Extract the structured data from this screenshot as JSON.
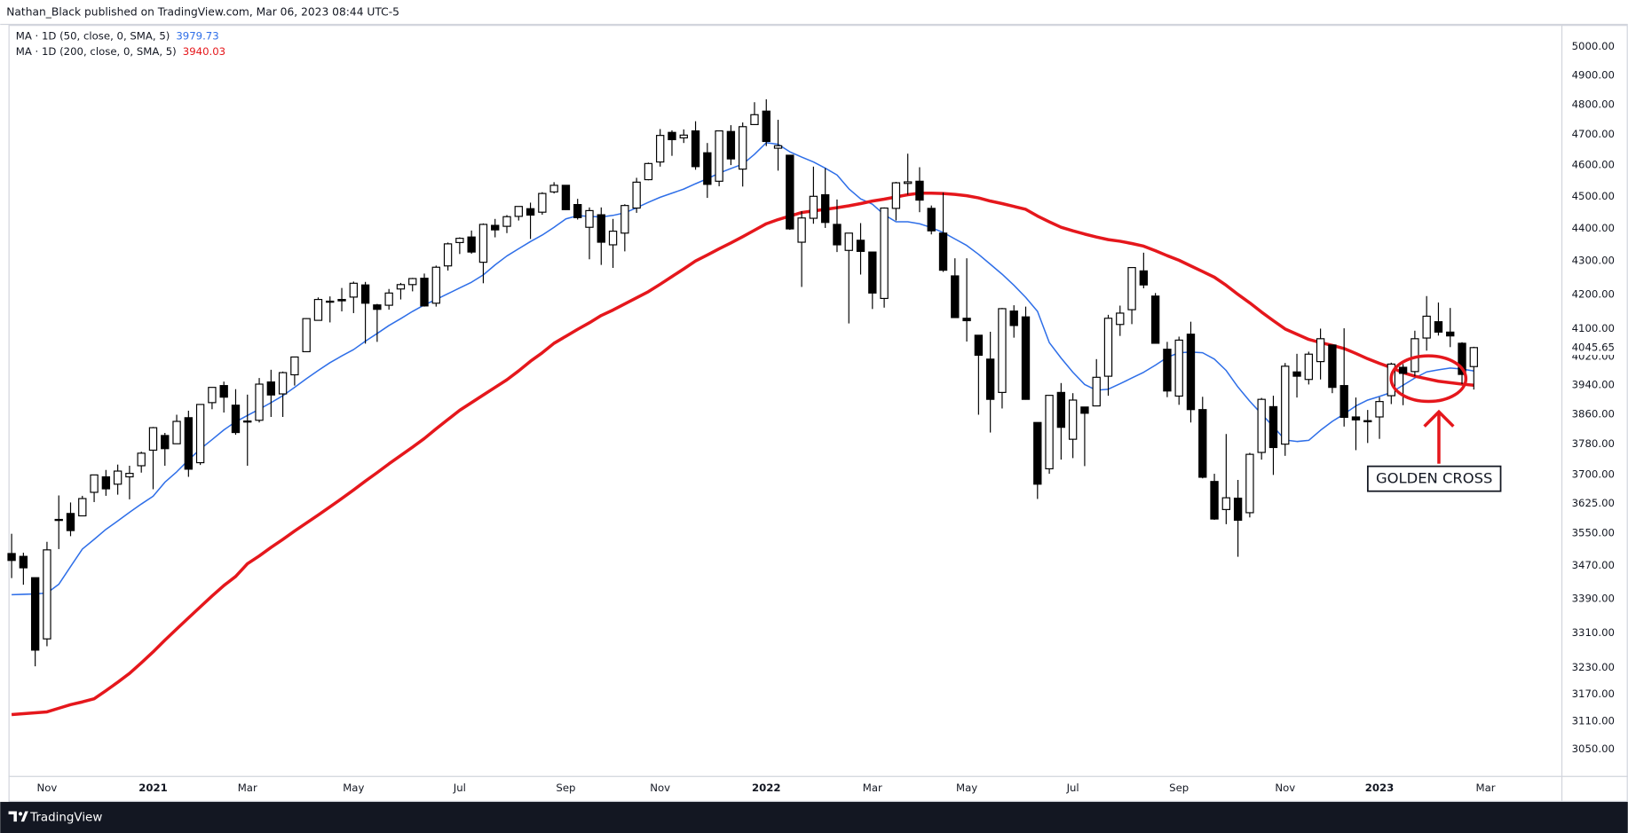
{
  "header": "Nathan_Black published on TradingView.com, Mar 06, 2023 08:44 UTC-5",
  "footer": "TradingView",
  "chart_data": {
    "type": "candlestick",
    "log_scale": true,
    "grid": false,
    "up_color": "#ffffff",
    "down_color": "#000000",
    "annotation": "GOLDEN CROSS",
    "ylim": [
      2993,
      5062
    ],
    "yticks": [
      {
        "value": 3050,
        "label": "3050.00"
      },
      {
        "value": 3110,
        "label": "3110.00"
      },
      {
        "value": 3170,
        "label": "3170.00"
      },
      {
        "value": 3230,
        "label": "3230.00"
      },
      {
        "value": 3310,
        "label": "3310.00"
      },
      {
        "value": 3390,
        "label": "3390.00"
      },
      {
        "value": 3470,
        "label": "3470.00"
      },
      {
        "value": 3550,
        "label": "3550.00"
      },
      {
        "value": 3625,
        "label": "3625.00"
      },
      {
        "value": 3700,
        "label": "3700.00"
      },
      {
        "value": 3780,
        "label": "3780.00"
      },
      {
        "value": 3860,
        "label": "3860.00"
      },
      {
        "value": 3940,
        "label": "3940.00"
      },
      {
        "value": 4020,
        "label": "4020.00"
      },
      {
        "value": 4100,
        "label": "4100.00"
      },
      {
        "value": 4200,
        "label": "4200.00"
      },
      {
        "value": 4300,
        "label": "4300.00"
      },
      {
        "value": 4400,
        "label": "4400.00"
      },
      {
        "value": 4500,
        "label": "4500.00"
      },
      {
        "value": 4600,
        "label": "4600.00"
      },
      {
        "value": 4700,
        "label": "4700.00"
      },
      {
        "value": 4800,
        "label": "4800.00"
      },
      {
        "value": 4900,
        "label": "4900.00"
      },
      {
        "value": 5000,
        "label": "5000.00"
      }
    ],
    "categories": [
      null,
      null,
      null,
      "Nov",
      null,
      null,
      null,
      null,
      null,
      null,
      null,
      null,
      "2021",
      null,
      null,
      null,
      null,
      null,
      null,
      null,
      "Mar",
      null,
      null,
      null,
      null,
      null,
      null,
      null,
      null,
      "May",
      null,
      null,
      null,
      null,
      null,
      null,
      null,
      null,
      "Jul",
      null,
      null,
      null,
      null,
      null,
      null,
      null,
      null,
      "Sep",
      null,
      null,
      null,
      null,
      null,
      null,
      null,
      "Nov",
      null,
      null,
      null,
      null,
      null,
      null,
      null,
      null,
      "2022",
      null,
      null,
      null,
      null,
      null,
      null,
      null,
      null,
      "Mar",
      null,
      null,
      null,
      null,
      null,
      null,
      null,
      "May",
      null,
      null,
      null,
      null,
      null,
      null,
      null,
      null,
      "Jul",
      null,
      null,
      null,
      null,
      null,
      null,
      null,
      null,
      "Sep",
      null,
      null,
      null,
      null,
      null,
      null,
      null,
      null,
      "Nov",
      null,
      null,
      null,
      null,
      null,
      null,
      null,
      "2023",
      null,
      null,
      null,
      null,
      null,
      null,
      null,
      null,
      "Mar"
    ],
    "open": [
      3500,
      3493,
      3441,
      3296,
      3583,
      3600,
      3594,
      3654,
      3694,
      3675,
      3694,
      3723,
      3764,
      3803,
      3781,
      3851,
      3731,
      3892,
      3939,
      3885,
      3842,
      3844,
      3949,
      3916,
      3969,
      4034,
      4124,
      4179,
      4185,
      4192,
      4228,
      4169,
      4168,
      4216,
      4229,
      4248,
      4174,
      4285,
      4356,
      4373,
      4296,
      4409,
      4406,
      4437,
      4461,
      4450,
      4514,
      4535,
      4474,
      4403,
      4442,
      4349,
      4385,
      4463,
      4553,
      4610,
      4707,
      4689,
      4712,
      4640,
      4548,
      4710,
      4587,
      4733,
      4778,
      4655,
      4632,
      4357,
      4431,
      4505,
      4412,
      4332,
      4363,
      4327,
      4188,
      4462,
      4541,
      4548,
      4462,
      4385,
      4255,
      4130,
      4081,
      4013,
      3920,
      4151,
      4134,
      3838,
      3715,
      3920,
      3793,
      3880,
      3883,
      3965,
      4112,
      4155,
      4270,
      4195,
      4041,
      3910,
      4084,
      3873,
      3682,
      3610,
      3639,
      3602,
      3758,
      3881,
      3780,
      3977,
      3956,
      4006,
      4053,
      3939,
      3853,
      3843,
      3853,
      3911,
      3990,
      3978,
      4073,
      4120,
      4090,
      4058,
      3992,
      null
    ],
    "high": [
      3549,
      3502,
      3441,
      3529,
      3646,
      3628,
      3645,
      3699,
      3712,
      3726,
      3723,
      3760,
      3826,
      3810,
      3859,
      3870,
      3887,
      3934,
      3950,
      3929,
      3914,
      3960,
      3983,
      3978,
      4020,
      4130,
      4191,
      4194,
      4219,
      4238,
      4237,
      4172,
      4216,
      4234,
      4249,
      4262,
      4286,
      4356,
      4372,
      4393,
      4415,
      4429,
      4441,
      4468,
      4480,
      4513,
      4545,
      4535,
      4492,
      4465,
      4465,
      4429,
      4475,
      4559,
      4608,
      4718,
      4714,
      4717,
      4744,
      4672,
      4713,
      4731,
      4740,
      4808,
      4818,
      4749,
      4632,
      4453,
      4595,
      4590,
      4490,
      4385,
      4416,
      4327,
      4465,
      4546,
      4637,
      4593,
      4471,
      4512,
      4308,
      4308,
      4081,
      4091,
      4160,
      4168,
      4164,
      3838,
      3913,
      3946,
      3918,
      3880,
      4013,
      4140,
      4167,
      4280,
      4325,
      4204,
      4062,
      4077,
      4120,
      3908,
      3702,
      3807,
      3686,
      3757,
      3905,
      3911,
      4002,
      4028,
      4034,
      4100,
      4053,
      4101,
      3906,
      3872,
      3907,
      4003,
      3999,
      4094,
      4195,
      4176,
      4160,
      4061,
      4048,
      null
    ],
    "low": [
      3440,
      3424,
      3233,
      3279,
      3511,
      3543,
      3594,
      3629,
      3645,
      3648,
      3636,
      3705,
      3662,
      3723,
      3781,
      3694,
      3725,
      3874,
      3865,
      3805,
      3723,
      3838,
      3853,
      3853,
      3939,
      4034,
      4124,
      4118,
      4150,
      4145,
      4057,
      4062,
      4155,
      4185,
      4209,
      4164,
      4164,
      4271,
      4321,
      4322,
      4233,
      4372,
      4385,
      4424,
      4367,
      4442,
      4509,
      4457,
      4427,
      4305,
      4288,
      4279,
      4329,
      4448,
      4551,
      4595,
      4630,
      4672,
      4585,
      4495,
      4532,
      4600,
      4531,
      4733,
      4662,
      4582,
      4395,
      4222,
      4414,
      4401,
      4327,
      4115,
      4259,
      4157,
      4161,
      4424,
      4505,
      4450,
      4381,
      4267,
      4132,
      4063,
      3859,
      3811,
      3876,
      4074,
      3900,
      3637,
      3702,
      3739,
      3743,
      3722,
      3883,
      3911,
      4079,
      4113,
      4218,
      4057,
      3907,
      3886,
      3838,
      3690,
      3584,
      3573,
      3492,
      3590,
      3739,
      3699,
      3749,
      3906,
      3942,
      3956,
      3918,
      3827,
      3764,
      3783,
      3794,
      3888,
      3885,
      3965,
      4037,
      4080,
      4047,
      3943,
      3928,
      null
    ],
    "close": [
      3483,
      3465,
      3270,
      3509,
      3585,
      3557,
      3638,
      3699,
      3663,
      3709,
      3703,
      3756,
      3824,
      3768,
      3841,
      3714,
      3887,
      3934,
      3907,
      3811,
      3842,
      3943,
      3913,
      3975,
      4019,
      4129,
      4185,
      4180,
      4181,
      4233,
      4174,
      4156,
      4204,
      4229,
      4247,
      4166,
      4281,
      4352,
      4369,
      4327,
      4412,
      4395,
      4436,
      4468,
      4441,
      4509,
      4535,
      4458,
      4433,
      4455,
      4357,
      4391,
      4471,
      4545,
      4605,
      4697,
      4683,
      4698,
      4595,
      4538,
      4712,
      4620,
      4726,
      4766,
      4677,
      4663,
      4398,
      4432,
      4500,
      4418,
      4349,
      4385,
      4329,
      4204,
      4463,
      4543,
      4546,
      4488,
      4392,
      4272,
      4132,
      4123,
      4024,
      3901,
      4158,
      4109,
      3901,
      3675,
      3912,
      3825,
      3899,
      3863,
      3962,
      4130,
      4145,
      4280,
      4228,
      4058,
      3924,
      4067,
      3873,
      3693,
      3586,
      3640,
      3583,
      3753,
      3901,
      3771,
      3993,
      3965,
      4027,
      4071,
      3934,
      3852,
      3845,
      3840,
      3895,
      3999,
      3973,
      4071,
      4136,
      4090,
      4079,
      3970,
      4045.65,
      null
    ],
    "series": [
      {
        "name": "MA · 1D (50, close, 0, SMA, 5)",
        "color": "#2f6fe8",
        "values": [
          3400,
          3401,
          3402,
          3404,
          3425,
          3468,
          3511,
          3535,
          3560,
          3581,
          3603,
          3624,
          3644,
          3680,
          3707,
          3738,
          3767,
          3792,
          3818,
          3840,
          3857,
          3874,
          3892,
          3911,
          3934,
          3958,
          3981,
          4003,
          4022,
          4040,
          4064,
          4086,
          4109,
          4129,
          4150,
          4169,
          4185,
          4202,
          4219,
          4236,
          4258,
          4288,
          4315,
          4337,
          4359,
          4379,
          4403,
          4429,
          4439,
          4437,
          4435,
          4440,
          4448,
          4464,
          4481,
          4497,
          4510,
          4523,
          4540,
          4556,
          4574,
          4589,
          4603,
          4635,
          4673,
          4668,
          4643,
          4626,
          4610,
          4590,
          4568,
          4524,
          4492,
          4475,
          4442,
          4420,
          4420,
          4414,
          4402,
          4387,
          4367,
          4347,
          4320,
          4290,
          4260,
          4227,
          4191,
          4150,
          4060,
          4016,
          3976,
          3942,
          3926,
          3929,
          3944,
          3960,
          3976,
          3996,
          4018,
          4031,
          4033,
          4031,
          4013,
          3981,
          3935,
          3896,
          3861,
          3827,
          3791,
          3787,
          3790,
          3817,
          3841,
          3861,
          3883,
          3899,
          3909,
          3920,
          3940,
          3960,
          3977,
          3983,
          3988,
          3985,
          3979.73,
          null
        ]
      },
      {
        "name": "MA · 1D (200, close, 0, SMA, 5)",
        "color": "#e5171c",
        "values": [
          3125,
          3127,
          3129,
          3131,
          3139,
          3147,
          3153,
          3160,
          3178,
          3197,
          3217,
          3241,
          3266,
          3293,
          3319,
          3345,
          3371,
          3397,
          3422,
          3444,
          3475,
          3494,
          3515,
          3535,
          3556,
          3576,
          3596,
          3617,
          3638,
          3660,
          3683,
          3705,
          3728,
          3750,
          3772,
          3795,
          3821,
          3846,
          3871,
          3892,
          3913,
          3934,
          3955,
          3980,
          4007,
          4031,
          4058,
          4078,
          4098,
          4117,
          4138,
          4154,
          4172,
          4190,
          4208,
          4230,
          4253,
          4276,
          4300,
          4318,
          4337,
          4355,
          4374,
          4394,
          4414,
          4427,
          4438,
          4449,
          4454,
          4459,
          4464,
          4470,
          4477,
          4485,
          4491,
          4498,
          4505,
          4510,
          4510,
          4509,
          4506,
          4502,
          4495,
          4485,
          4477,
          4468,
          4459,
          4438,
          4420,
          4403,
          4392,
          4382,
          4373,
          4365,
          4360,
          4353,
          4345,
          4331,
          4316,
          4302,
          4285,
          4268,
          4251,
          4227,
          4200,
          4175,
          4148,
          4123,
          4099,
          4084,
          4069,
          4060,
          4052,
          4043,
          4029,
          4014,
          4001,
          3989,
          3975,
          3965,
          3958,
          3951,
          3947,
          3943,
          3940.03,
          null
        ]
      }
    ]
  }
}
